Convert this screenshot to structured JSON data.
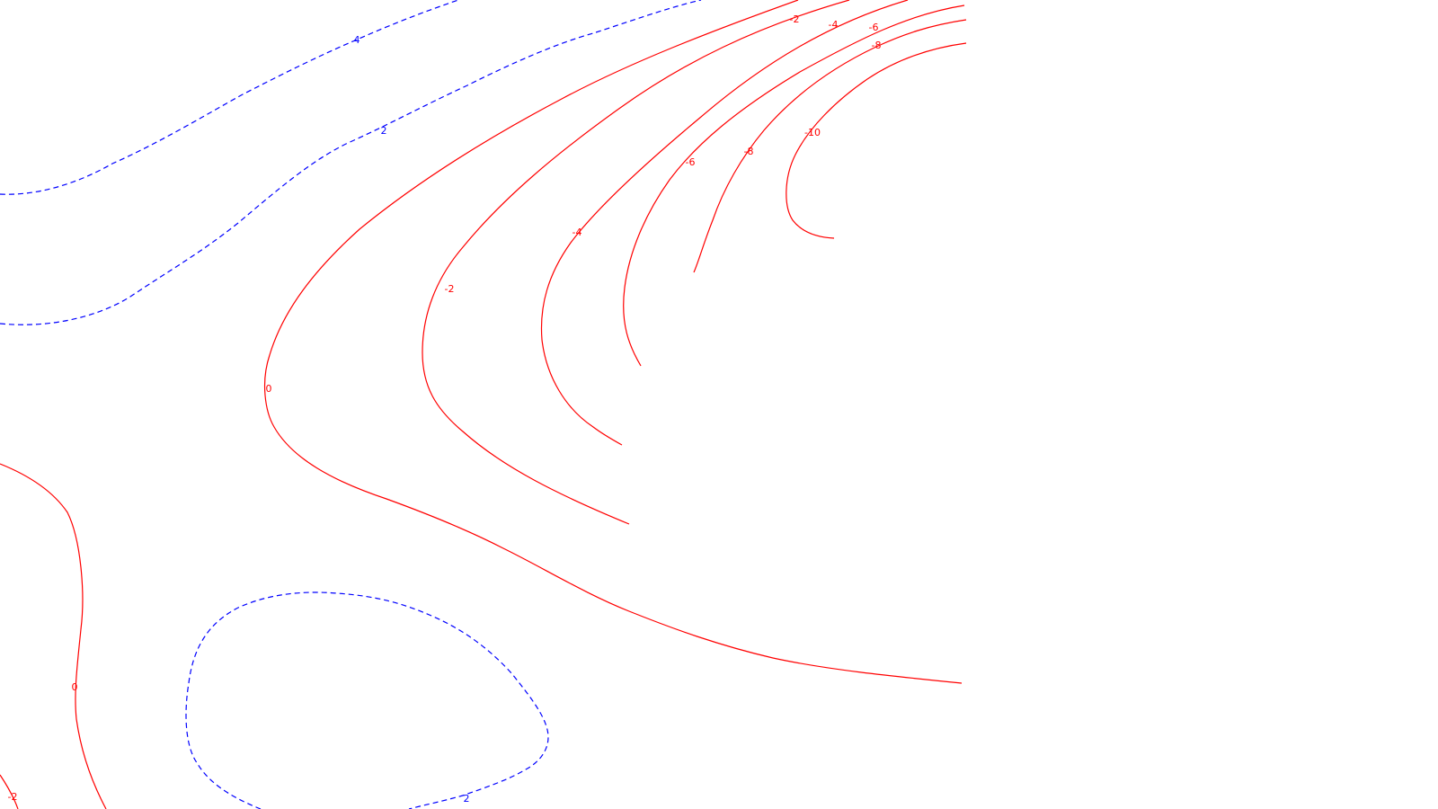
{
  "chart_data": {
    "type": "contour",
    "title": "",
    "xlabel": "",
    "ylabel": "",
    "grid": false,
    "legend": "none",
    "colors": {
      "positive": "#0000ff",
      "zero_and_negative": "#ff0000",
      "background": "#ffffff"
    },
    "line_styles": {
      "positive": "dashed",
      "zero_and_negative": "solid"
    },
    "contour_levels": [
      4,
      2,
      0,
      -2,
      -4,
      -6,
      -8,
      -10
    ],
    "visible_labels": [
      {
        "level": 4,
        "text": "4"
      },
      {
        "level": 2,
        "text": "2"
      },
      {
        "level": 2,
        "text": "2"
      },
      {
        "level": 0,
        "text": "0"
      },
      {
        "level": 0,
        "text": "0"
      },
      {
        "level": -2,
        "text": "-2"
      },
      {
        "level": -2,
        "text": "-2"
      },
      {
        "level": -2,
        "text": "-2"
      },
      {
        "level": -4,
        "text": "-4"
      },
      {
        "level": -4,
        "text": "-4"
      },
      {
        "level": -6,
        "text": "-6"
      },
      {
        "level": -6,
        "text": "-6"
      },
      {
        "level": -8,
        "text": "-8"
      },
      {
        "level": -8,
        "text": "-8"
      },
      {
        "level": -10,
        "text": "-10"
      }
    ]
  }
}
